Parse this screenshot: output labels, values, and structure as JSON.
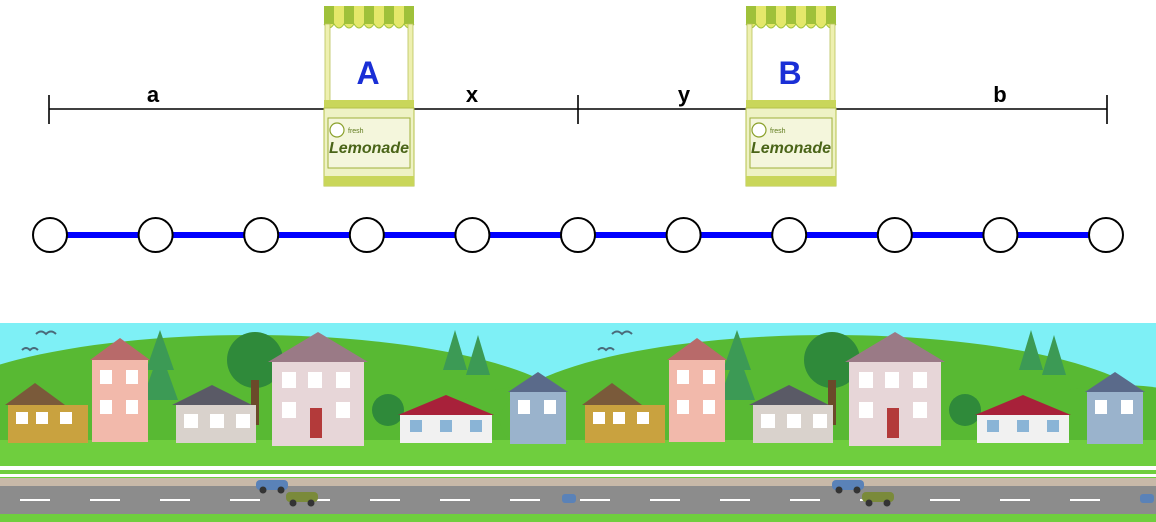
{
  "measure": {
    "labels": [
      "a",
      "x",
      "y",
      "b"
    ]
  },
  "stands": [
    {
      "letter": "A",
      "sign_small": "fresh",
      "sign_large": "Lemonade"
    },
    {
      "letter": "B",
      "sign_small": "fresh",
      "sign_large": "Lemonade"
    }
  ],
  "number_line": {
    "node_count": 11,
    "line_color": "#0000ff",
    "node_fill": "#ffffff",
    "node_stroke": "#000000"
  },
  "colors": {
    "letter_color": "#1a2fd6",
    "sky": "#7ef0f6",
    "hill": "#58b933",
    "grass": "#6fce3e",
    "road": "#8c8c8c",
    "awning_yellow": "#e4e86a",
    "awning_green": "#9fc13a"
  },
  "scene": {
    "background_icons": [
      "houses-icon",
      "trees-icon",
      "birds-icon",
      "cars-icon",
      "road-icon"
    ]
  }
}
